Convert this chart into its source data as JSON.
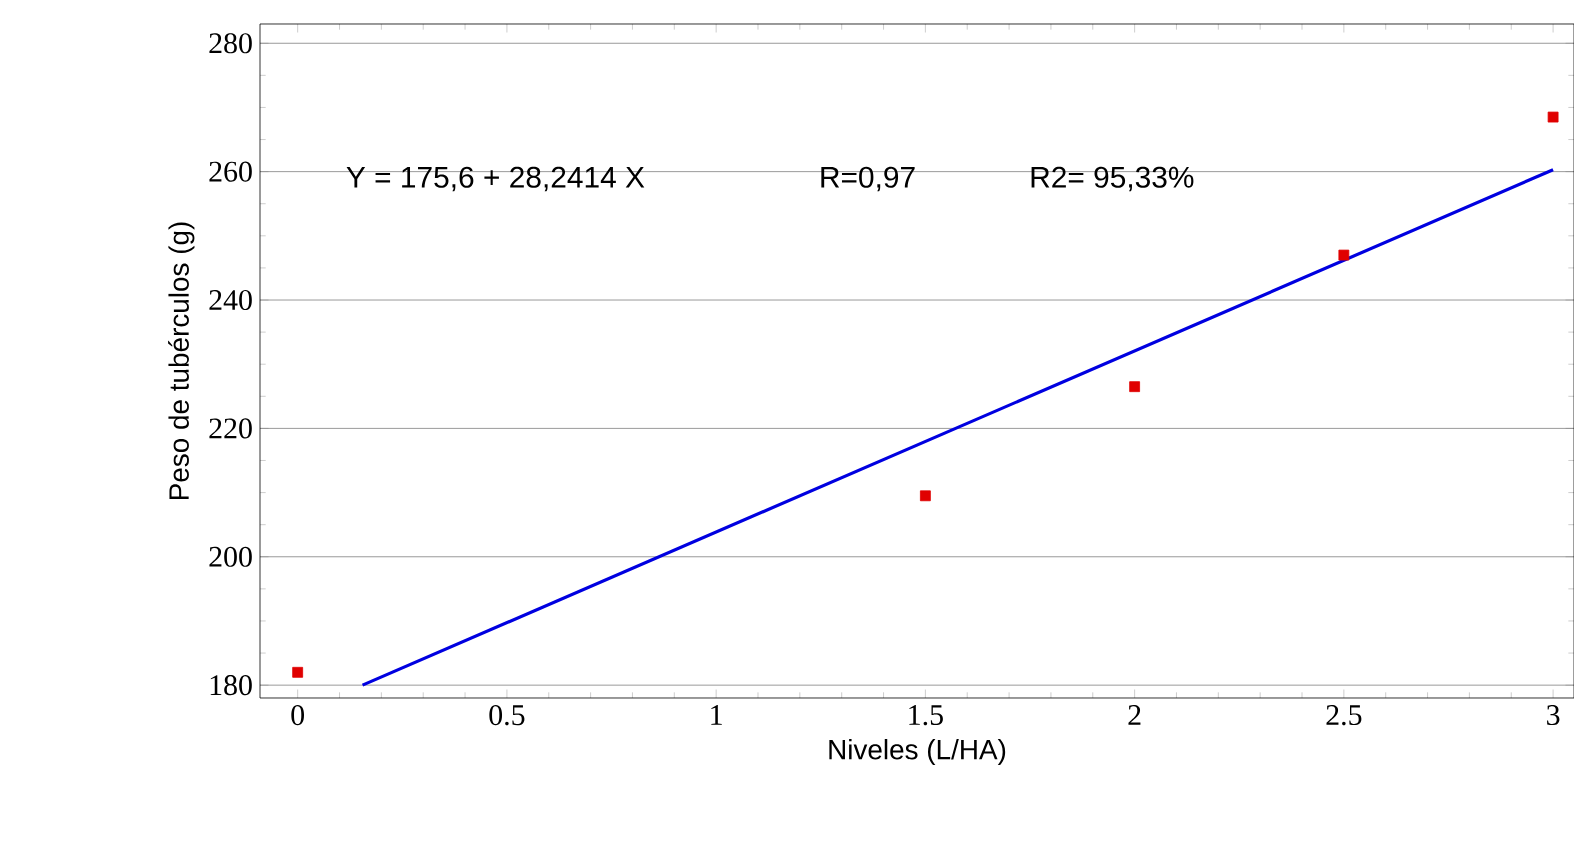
{
  "chart_data": {
    "type": "scatter",
    "xlabel": "Niveles (L/HA)",
    "ylabel": "Peso de tubérculos (g)",
    "annotations": [
      "Y  = 175,6 + 28,2414 X",
      "R=0,97",
      "R2= 95,33%"
    ],
    "xlim": [
      -0.09,
      3.05
    ],
    "ylim": [
      178,
      283
    ],
    "xticks": [
      0,
      0.5,
      1,
      1.5,
      2,
      2.5,
      3
    ],
    "yticks": [
      180,
      200,
      220,
      240,
      260,
      280
    ],
    "grid": "y",
    "series": [
      {
        "marker": "square",
        "color": "#e00000",
        "x": [
          0,
          1.5,
          2,
          2.5,
          3
        ],
        "values": [
          182,
          209.5,
          226.5,
          247,
          268.5
        ]
      },
      {
        "type": "line",
        "color": "#0000e0",
        "x": [
          0.155,
          3
        ],
        "values": [
          180,
          260.3
        ]
      }
    ]
  }
}
